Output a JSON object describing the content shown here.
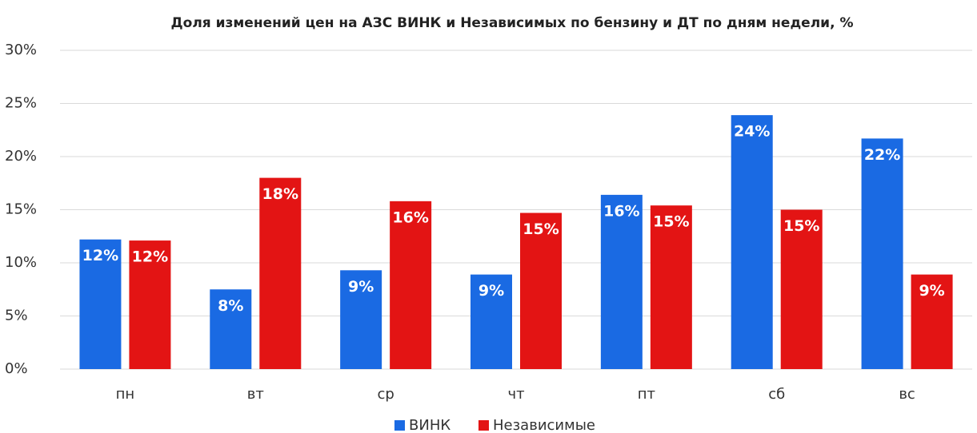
{
  "chart_data": {
    "type": "bar",
    "title": "Доля изменений цен на АЗС ВИНК и Независимых по бензину и ДТ по дням недели, %",
    "categories": [
      "пн",
      "вт",
      "ср",
      "чт",
      "пт",
      "сб",
      "вс"
    ],
    "series": [
      {
        "name": "ВИНК",
        "color": "#1a6ae3",
        "values": [
          12.2,
          7.5,
          9.3,
          8.9,
          16.4,
          23.9,
          21.7
        ],
        "value_labels": [
          "12%",
          "8%",
          "9%",
          "9%",
          "16%",
          "24%",
          "22%"
        ]
      },
      {
        "name": "Независимые",
        "color": "#e31414",
        "values": [
          12.1,
          18.0,
          15.8,
          14.7,
          15.4,
          15.0,
          8.9
        ],
        "value_labels": [
          "12%",
          "18%",
          "16%",
          "15%",
          "15%",
          "15%",
          "9%"
        ]
      }
    ],
    "ylim": [
      0,
      30
    ],
    "yticks": [
      {
        "value": 0,
        "label": "0%"
      },
      {
        "value": 5,
        "label": "5%"
      },
      {
        "value": 10,
        "label": "10%"
      },
      {
        "value": 15,
        "label": "15%"
      },
      {
        "value": 20,
        "label": "20%"
      },
      {
        "value": 25,
        "label": "25%"
      },
      {
        "value": 30,
        "label": "30%"
      }
    ],
    "grid": true,
    "legend": "bottom"
  }
}
